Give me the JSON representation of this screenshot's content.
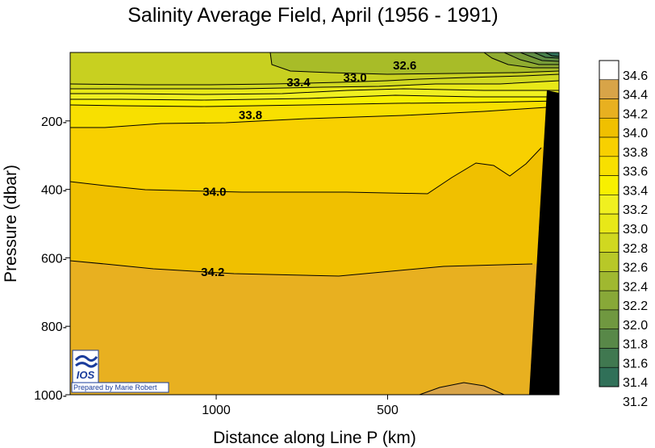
{
  "chart_data": {
    "type": "contour",
    "title": "Salinity Average Field,  April (1956 - 1991)",
    "xlabel": "Distance along Line P  (km)",
    "ylabel": "Pressure  (dbar)",
    "xlim": [
      1426,
      0
    ],
    "x_direction": "decreasing",
    "ylim": [
      1000,
      0
    ],
    "y_direction": "depth-down",
    "x_ticks": [
      {
        "value": 1000,
        "label": "1000"
      },
      {
        "value": 500,
        "label": "500"
      }
    ],
    "y_ticks": [
      {
        "value": 200,
        "label": "200-"
      },
      {
        "value": 400,
        "label": "400-"
      },
      {
        "value": 600,
        "label": "600-"
      },
      {
        "value": 800,
        "label": "800-"
      },
      {
        "value": 1000,
        "label": "1000-"
      }
    ],
    "colorbar": {
      "levels": [
        "34.6",
        "34.4",
        "34.2",
        "34.0",
        "33.8",
        "33.6",
        "33.4",
        "33.2",
        "33.0",
        "32.8",
        "32.6",
        "32.4",
        "32.2",
        "32.0",
        "31.8",
        "31.6",
        "31.4",
        "31.2"
      ],
      "colors": [
        "#ffffff",
        "#d8a448",
        "#e8b020",
        "#f0c000",
        "#f8d000",
        "#f8e000",
        "#f8f000",
        "#f0f020",
        "#e8e818",
        "#d0d820",
        "#b8c828",
        "#a0b830",
        "#88a838",
        "#709840",
        "#588848",
        "#407850",
        "#307058"
      ]
    },
    "contours": [
      {
        "level": "32.6",
        "label": "32.6",
        "x_km": 450,
        "pressure": 38
      },
      {
        "level": "33.0",
        "label": "33.0",
        "x_km": 595,
        "pressure": 73
      },
      {
        "level": "33.4",
        "label": "33.4",
        "x_km": 760,
        "pressure": 87
      },
      {
        "level": "33.8",
        "label": "33.8",
        "x_km": 900,
        "pressure": 183
      },
      {
        "level": "34.0",
        "label": "34.0",
        "x_km": 1005,
        "pressure": 407
      },
      {
        "level": "34.2",
        "label": "34.2",
        "x_km": 1010,
        "pressure": 641
      }
    ],
    "seafloor_color": "#000000",
    "logo": {
      "text": "IOS",
      "credit": "Prepared by Marie Robert"
    }
  }
}
